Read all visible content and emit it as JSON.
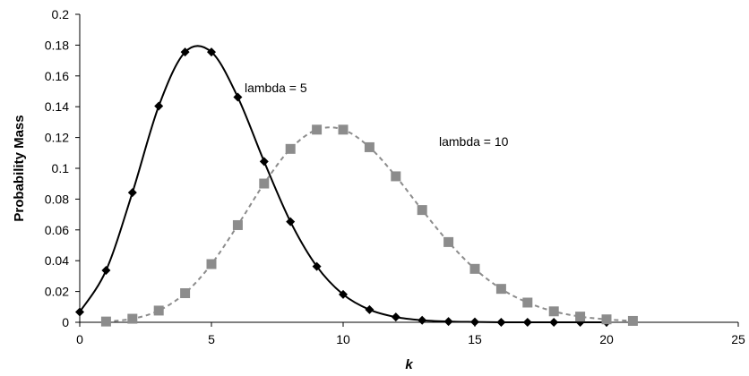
{
  "chart_data": {
    "type": "line",
    "xlabel": "k",
    "ylabel": "Probability Mass",
    "xlim": [
      0,
      25
    ],
    "ylim": [
      0,
      0.2
    ],
    "xticks": [
      0,
      5,
      10,
      15,
      20,
      25
    ],
    "yticks": [
      0,
      0.02,
      0.04,
      0.06,
      0.08,
      0.1,
      0.12,
      0.14,
      0.16,
      0.18,
      0.2
    ],
    "grid": false,
    "series": [
      {
        "name": "lambda = 5",
        "marker": "diamond",
        "line_style": "solid",
        "color": "#000000",
        "x": [
          0,
          1,
          2,
          3,
          4,
          5,
          6,
          7,
          8,
          9,
          10,
          11,
          12,
          13,
          14,
          15,
          16,
          17,
          18,
          19,
          20
        ],
        "y": [
          0.0067,
          0.0337,
          0.0842,
          0.1404,
          0.1755,
          0.1755,
          0.1462,
          0.1044,
          0.0653,
          0.0363,
          0.0181,
          0.0082,
          0.0034,
          0.0013,
          0.0005,
          0.0002,
          0.0,
          0.0,
          0.0,
          0.0,
          0.0
        ]
      },
      {
        "name": "lambda = 10",
        "marker": "square",
        "line_style": "dashed",
        "color": "#8c8c8c",
        "x": [
          1,
          2,
          3,
          4,
          5,
          6,
          7,
          8,
          9,
          10,
          11,
          12,
          13,
          14,
          15,
          16,
          17,
          18,
          19,
          20,
          21
        ],
        "y": [
          0.0005,
          0.0023,
          0.0076,
          0.0189,
          0.0378,
          0.0631,
          0.0901,
          0.1126,
          0.1251,
          0.1251,
          0.1137,
          0.0948,
          0.0729,
          0.0521,
          0.0347,
          0.0217,
          0.0128,
          0.0071,
          0.0037,
          0.0019,
          0.0009
        ]
      }
    ]
  }
}
